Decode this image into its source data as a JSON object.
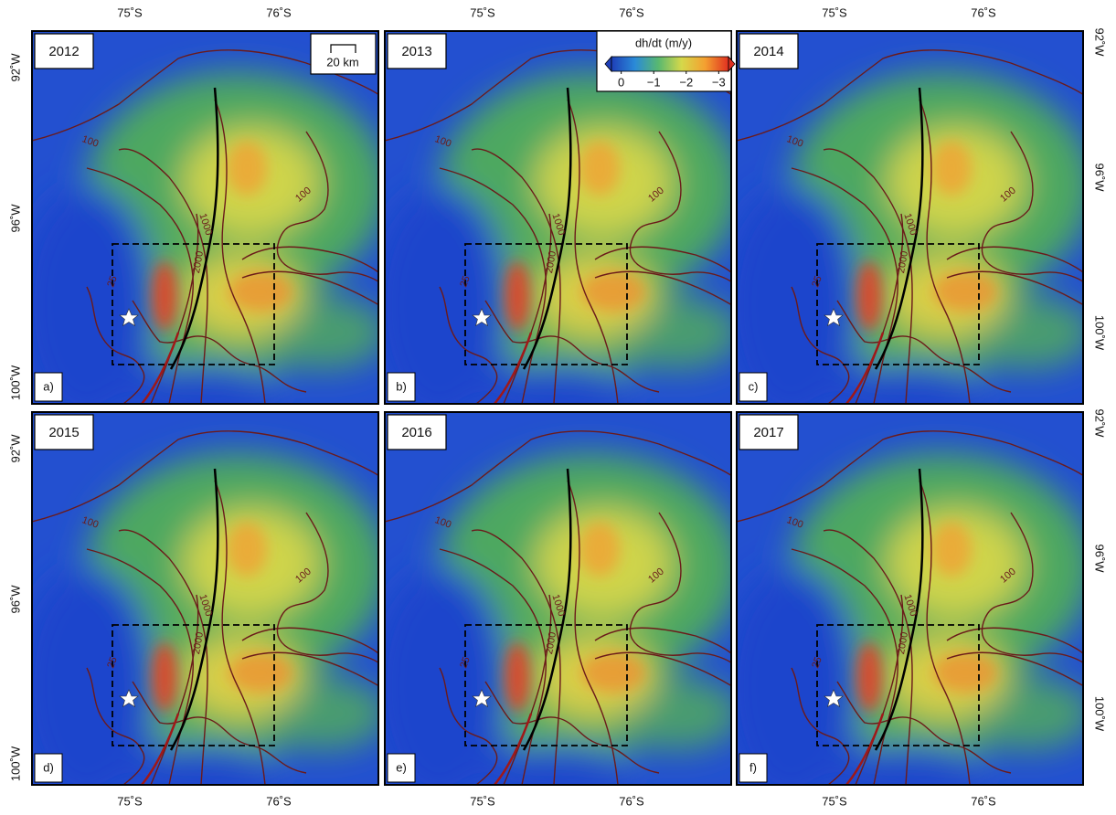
{
  "panels": [
    {
      "year": "2012",
      "letter": "a)"
    },
    {
      "year": "2013",
      "letter": "b)"
    },
    {
      "year": "2014",
      "letter": "c)"
    },
    {
      "year": "2015",
      "letter": "d)"
    },
    {
      "year": "2016",
      "letter": "e)"
    },
    {
      "year": "2017",
      "letter": "f)"
    }
  ],
  "latitude_labels": [
    "75˚S",
    "76˚S"
  ],
  "longitude_labels": [
    "92˚W",
    "96˚W",
    "100˚W"
  ],
  "contour_labels": [
    "100",
    "1000",
    "2000",
    "25"
  ],
  "scale_bar": "20 km",
  "colorbar": {
    "title": "dh/dt (m/y)",
    "range": [
      0.3,
      -3.3
    ],
    "ticks": [
      0,
      {
        "value": -1,
        "label": "−1"
      },
      {
        "value": -2,
        "label": "−2"
      },
      {
        "value": -3,
        "label": "−3"
      }
    ]
  }
}
